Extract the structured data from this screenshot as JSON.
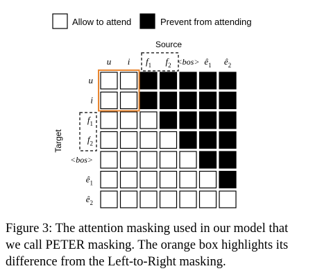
{
  "legend": {
    "allow": {
      "label": "Allow to attend",
      "color": "#ffffff"
    },
    "prevent": {
      "label": "Prevent from attending",
      "color": "#000000"
    }
  },
  "axes": {
    "source_label": "Source",
    "target_label": "Target"
  },
  "tokens": [
    {
      "base": "u",
      "sub": "",
      "hat": false
    },
    {
      "base": "i",
      "sub": "",
      "hat": false
    },
    {
      "base": "f",
      "sub": "1",
      "hat": false
    },
    {
      "base": "f",
      "sub": "2",
      "hat": false
    },
    {
      "base": "<bos>",
      "sub": "",
      "hat": false
    },
    {
      "base": "e",
      "sub": "1",
      "hat": true
    },
    {
      "base": "e",
      "sub": "2",
      "hat": true
    }
  ],
  "mask": [
    [
      0,
      0,
      1,
      1,
      1,
      1,
      1
    ],
    [
      0,
      0,
      1,
      1,
      1,
      1,
      1
    ],
    [
      0,
      0,
      0,
      1,
      1,
      1,
      1
    ],
    [
      0,
      0,
      0,
      0,
      1,
      1,
      1
    ],
    [
      0,
      0,
      0,
      0,
      0,
      1,
      1
    ],
    [
      0,
      0,
      0,
      0,
      0,
      0,
      1
    ],
    [
      0,
      0,
      0,
      0,
      0,
      0,
      0
    ]
  ],
  "colors": {
    "highlight": "#e8852f",
    "cell_border": "#000000"
  },
  "caption": {
    "line1": "Figure 3: The attention masking used in our model that",
    "line2": "we call PETER masking. The orange box highlights its",
    "line3": "difference from the Left-to-Right masking."
  }
}
